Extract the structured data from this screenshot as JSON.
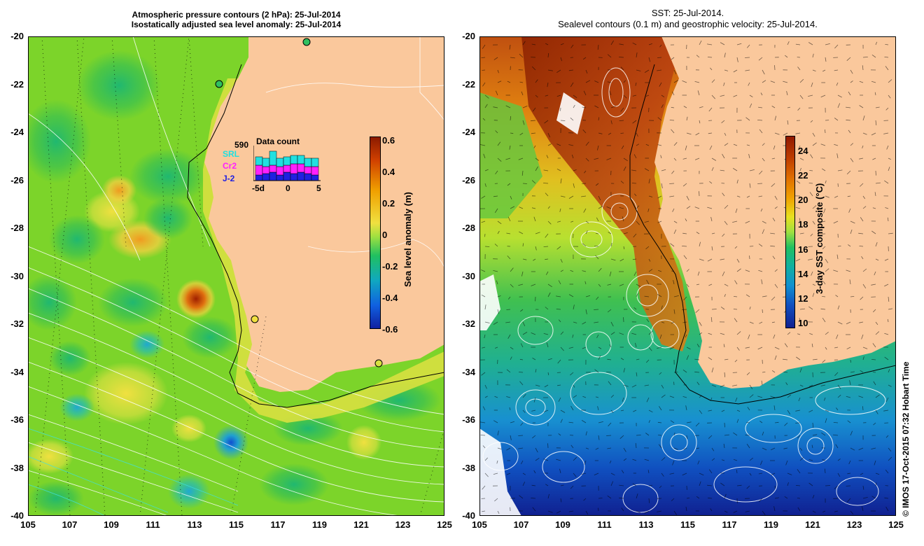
{
  "left_panel": {
    "title_line1": "Atmospheric pressure contours (2 hPa): 25-Jul-2014",
    "title_line2": "Isostatically adjusted sea level anomaly: 25-Jul-2014",
    "colorbar": {
      "label": "Sea level anomaly (m)",
      "ticks": [
        "0.6",
        "0.4",
        "0.2",
        "0",
        "-0.2",
        "-0.4",
        "-0.6"
      ],
      "colors": [
        "#8b1a00",
        "#d04000",
        "#f0a000",
        "#f0e040",
        "#a0e040",
        "#20c060",
        "#10a8c0",
        "#1060e0",
        "#1020a0"
      ]
    },
    "data_count": {
      "title": "Data count",
      "max_value": "590",
      "series": [
        "SRL",
        "Cr2",
        "J-2"
      ],
      "series_colors": [
        "#20e0e0",
        "#ff20ff",
        "#2020e0"
      ],
      "x_ticks": [
        "-5d",
        "0",
        "5"
      ]
    }
  },
  "right_panel": {
    "title_line1": "SST: 25-Jul-2014.",
    "title_line2": "Sealevel contours (0.1 m) and geostrophic velocity: 25-Jul-2014.",
    "colorbar": {
      "label": "3-day SST composite (°C)",
      "ticks": [
        "24",
        "22",
        "20",
        "18",
        "16",
        "14",
        "12",
        "10"
      ],
      "colors": [
        "#901800",
        "#c04000",
        "#e07000",
        "#f0a000",
        "#e8e020",
        "#a0e040",
        "#20c060",
        "#10b0a0",
        "#1090d0",
        "#1050c0",
        "#102090"
      ]
    }
  },
  "axes": {
    "lat_ticks": [
      "-20",
      "-22",
      "-24",
      "-26",
      "-28",
      "-30",
      "-32",
      "-34",
      "-36",
      "-38",
      "-40"
    ],
    "lon_ticks": [
      "105",
      "107",
      "109",
      "111",
      "113",
      "115",
      "117",
      "119",
      "121",
      "123",
      "125"
    ]
  },
  "credit": "© IMOS 17-Oct-2015 07:32 Hobart Time",
  "colors": {
    "land": "#fac89c",
    "ocean_left": "#7cd42a",
    "ocean_right": "#30b840"
  }
}
